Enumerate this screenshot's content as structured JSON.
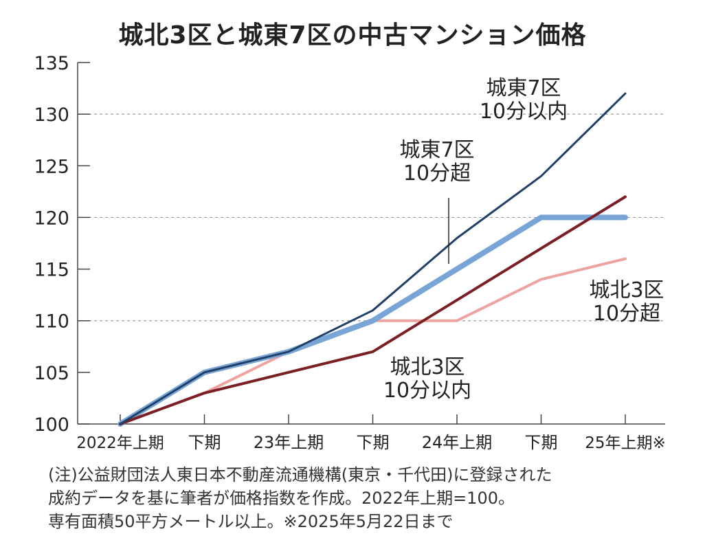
{
  "chart_data": {
    "type": "line",
    "title": "城北3区と城東7区の中古マンション価格",
    "categories": [
      "2022年上期",
      "下期",
      "23年上期",
      "下期",
      "24年上期",
      "下期",
      "25年上期※"
    ],
    "ylim": [
      100,
      135
    ],
    "yticks": [
      100,
      105,
      110,
      115,
      120,
      125,
      130,
      135
    ],
    "gridlines": [
      110,
      120,
      130
    ],
    "series": [
      {
        "name": "城東7区 10分以内",
        "label_lines": [
          "城東7区",
          "10分以内"
        ],
        "color": "#1f3f66",
        "width": 3,
        "values": [
          100,
          105,
          107,
          111,
          118,
          124,
          132
        ]
      },
      {
        "name": "城東7区 10分超",
        "label_lines": [
          "城東7区",
          "10分超"
        ],
        "color": "#78a5d6",
        "width": 8,
        "values": [
          100,
          105,
          107,
          110,
          115,
          120,
          120
        ]
      },
      {
        "name": "城北3区 10分以内",
        "label_lines": [
          "城北3区",
          "10分以内"
        ],
        "color": "#7a1f24",
        "width": 4,
        "values": [
          100,
          103,
          105,
          107,
          112,
          117,
          122
        ]
      },
      {
        "name": "城北3区 10分超",
        "label_lines": [
          "城北3区",
          "10分超"
        ],
        "color": "#eda3a0",
        "width": 4,
        "values": [
          100,
          103,
          107,
          110,
          110,
          114,
          116
        ]
      }
    ]
  },
  "notes": [
    "(注)公益財団法人東日本不動産流通機構(東京・千代田)に登録された",
    "成約データを基に筆者が価格指数を作成。2022年上期=100。",
    "専有面積50平方メートル以上。※2025年5月22日まで"
  ]
}
